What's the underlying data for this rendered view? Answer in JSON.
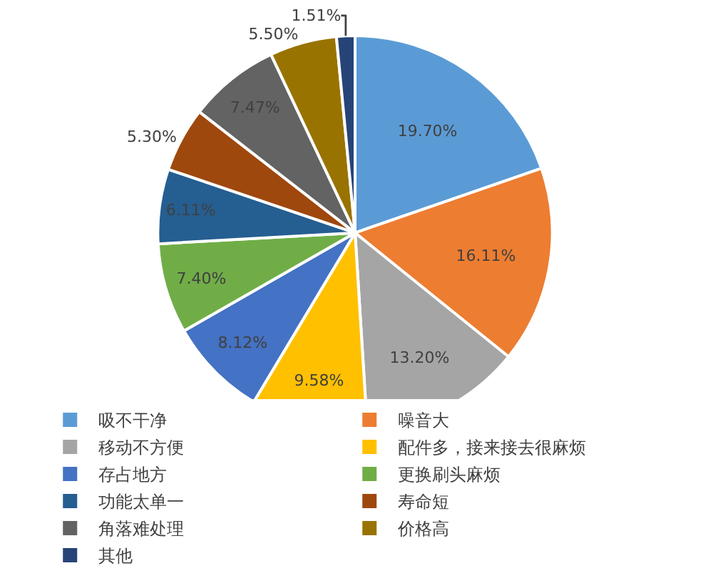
{
  "chart_data": {
    "type": "pie",
    "categories": [
      "吸不干净",
      "噪音大",
      "移动不方便",
      "配件多，接来接去很麻烦",
      "存占地方",
      "更换刷头麻烦",
      "功能太单一",
      "寿命短",
      "角落难处理",
      "价格高",
      "其他"
    ],
    "values": [
      19.7,
      16.11,
      13.2,
      9.58,
      8.12,
      7.4,
      6.11,
      5.3,
      7.47,
      5.5,
      1.51
    ],
    "value_labels": [
      "19.70%",
      "16.11%",
      "13.20%",
      "9.58%",
      "8.12%",
      "7.40%",
      "6.11%",
      "5.30%",
      "7.47%",
      "5.50%",
      "1.51%"
    ],
    "colors": [
      "#5b9bd5",
      "#ed7d31",
      "#a5a5a5",
      "#ffc000",
      "#4472c4",
      "#70ad47",
      "#255e91",
      "#9e480e",
      "#636363",
      "#997300",
      "#264478"
    ],
    "legend": "bottom"
  }
}
